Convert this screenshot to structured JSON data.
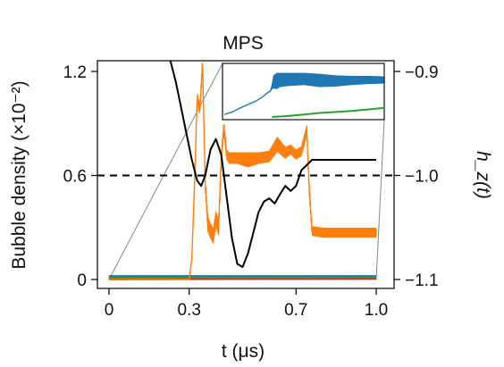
{
  "chart_data": {
    "type": "line",
    "title": "MPS",
    "xlabel": "t (μs)",
    "ylabel": "Bubble density (×10⁻²)",
    "ylabel_right": "h_z(t)",
    "xlim": [
      0,
      1.0
    ],
    "ylim": [
      0,
      1.3
    ],
    "ylim_right": [
      -1.12,
      -0.88
    ],
    "x_ticks": [
      0,
      0.3,
      0.7,
      1.0
    ],
    "x_tick_labels": [
      "0",
      "0.3",
      "0.7",
      "1.0"
    ],
    "y_ticks": [
      0,
      0.6,
      1.2
    ],
    "y_tick_labels": [
      "0",
      "0.6",
      "1.2"
    ],
    "y_ticks_right": [
      -1.1,
      -1.0,
      -0.9
    ],
    "y_tick_labels_right": [
      "−1.1",
      "−1.0",
      "−0.9"
    ],
    "grid": false,
    "reference_line": {
      "axis": "right",
      "value": -1.0,
      "style": "dashed",
      "color": "#000000"
    },
    "series": [
      {
        "color": "#ff7f0e",
        "axis": "left",
        "x": [
          0,
          0.3,
          0.31,
          0.32,
          0.33,
          0.34,
          0.35,
          0.36,
          0.37,
          0.38,
          0.39,
          0.4,
          0.41,
          0.42,
          0.43,
          0.44,
          0.45,
          0.48,
          0.52,
          0.56,
          0.6,
          0.63,
          0.66,
          0.68,
          0.7,
          0.72,
          0.74,
          0.75,
          0.76,
          0.8,
          0.85,
          0.9,
          0.95,
          1.0
        ],
        "y": [
          0,
          0,
          0.12,
          0.55,
          1.05,
          0.98,
          1.25,
          0.55,
          0.32,
          0.28,
          0.25,
          0.35,
          0.3,
          0.7,
          0.88,
          0.72,
          0.7,
          0.7,
          0.69,
          0.7,
          0.71,
          0.78,
          0.73,
          0.75,
          0.72,
          0.74,
          0.86,
          0.5,
          0.28,
          0.27,
          0.27,
          0.27,
          0.27,
          0.27
        ],
        "band": [
          0,
          0,
          0,
          0,
          0.05,
          0.05,
          0.05,
          0.05,
          0.08,
          0.08,
          0.08,
          0.08,
          0.08,
          0.06,
          0.06,
          0.05,
          0.06,
          0.06,
          0.08,
          0.06,
          0.06,
          0.08,
          0.06,
          0.05,
          0.05,
          0.05,
          0.05,
          0.05,
          0.05,
          0.05,
          0.05,
          0.05,
          0.05,
          0.05
        ]
      },
      {
        "color": "#000000",
        "axis": "right",
        "x": [
          0.21,
          0.23,
          0.25,
          0.27,
          0.29,
          0.31,
          0.33,
          0.345,
          0.36,
          0.38,
          0.4,
          0.42,
          0.44,
          0.46,
          0.48,
          0.5,
          0.52,
          0.54,
          0.56,
          0.58,
          0.6,
          0.62,
          0.64,
          0.66,
          0.68,
          0.7,
          0.72,
          0.74,
          0.76,
          0.78,
          0.8,
          0.85,
          0.9,
          0.95,
          1.0
        ],
        "y": [
          -0.885,
          -0.89,
          -0.91,
          -0.935,
          -0.96,
          -0.985,
          -1.005,
          -1.01,
          -1.0,
          -0.975,
          -0.965,
          -0.98,
          -1.02,
          -1.06,
          -1.085,
          -1.088,
          -1.075,
          -1.055,
          -1.035,
          -1.025,
          -1.022,
          -1.027,
          -1.018,
          -1.01,
          -1.015,
          -1.01,
          -0.995,
          -0.99,
          -0.985,
          -0.985,
          -0.985,
          -0.985,
          -0.985,
          -0.985,
          -0.985
        ]
      },
      {
        "color": "#1f77b4",
        "axis": "left",
        "x": [
          0,
          0.25,
          0.5,
          0.75,
          1.0
        ],
        "y": [
          0.02,
          0.02,
          0.02,
          0.02,
          0.02
        ]
      },
      {
        "color": "#2ca02c",
        "axis": "left",
        "x": [
          0,
          0.25,
          0.5,
          0.75,
          1.0
        ],
        "y": [
          0.01,
          0.01,
          0.01,
          0.01,
          0.012
        ]
      },
      {
        "color": "#d62728",
        "axis": "left",
        "x": [
          0,
          0.25,
          0.5,
          0.75,
          1.0
        ],
        "y": [
          0.0,
          0.002,
          0.003,
          0.004,
          0.005
        ]
      }
    ],
    "inset": {
      "series": [
        {
          "color": "#1f77b4",
          "x": [
            0,
            0.05,
            0.1,
            0.15,
            0.2,
            0.24,
            0.27,
            0.29,
            0.3,
            0.31,
            0.33,
            0.35,
            0.4,
            0.5,
            0.6,
            0.7,
            0.8,
            0.9,
            1.0
          ],
          "y": [
            0.05,
            0.1,
            0.18,
            0.25,
            0.32,
            0.4,
            0.48,
            0.52,
            0.6,
            0.7,
            0.72,
            0.74,
            0.75,
            0.76,
            0.73,
            0.72,
            0.73,
            0.74,
            0.74
          ],
          "band": [
            0,
            0,
            0,
            0,
            0,
            0,
            0,
            0,
            0.06,
            0.24,
            0.3,
            0.26,
            0.24,
            0.22,
            0.24,
            0.2,
            0.16,
            0.14,
            0.12
          ]
        },
        {
          "color": "#2ca02c",
          "x": [
            0.3,
            0.4,
            0.5,
            0.6,
            0.7,
            0.8,
            0.9,
            1.0
          ],
          "y": [
            0.0,
            0.02,
            0.05,
            0.08,
            0.1,
            0.12,
            0.15,
            0.18
          ]
        }
      ]
    }
  }
}
